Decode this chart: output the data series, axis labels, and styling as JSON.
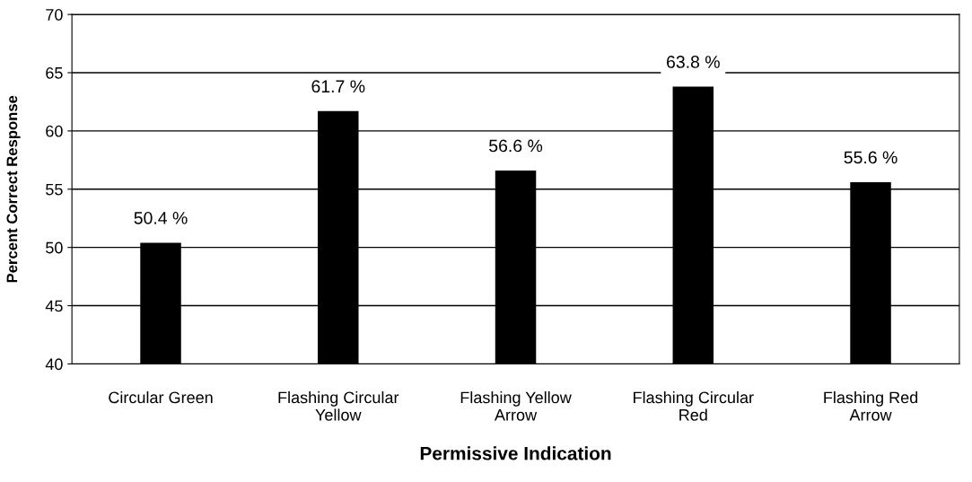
{
  "chart_data": {
    "type": "bar",
    "xlabel": "Permissive Indication",
    "ylabel": "Percent Correct Response",
    "categories": [
      "Circular Green",
      "Flashing Circular Yellow",
      "Flashing Yellow Arrow",
      "Flashing Circular Red",
      "Flashing Red Arrow"
    ],
    "values": [
      50.4,
      61.7,
      56.6,
      63.8,
      55.6
    ],
    "value_labels": [
      "50.4 %",
      "61.7 %",
      "56.6 %",
      "63.8 %",
      "55.6 %"
    ],
    "color": "#000000",
    "ylim": [
      40,
      70
    ],
    "yticks": [
      40,
      45,
      50,
      55,
      60,
      65,
      70
    ],
    "grid": "y"
  }
}
